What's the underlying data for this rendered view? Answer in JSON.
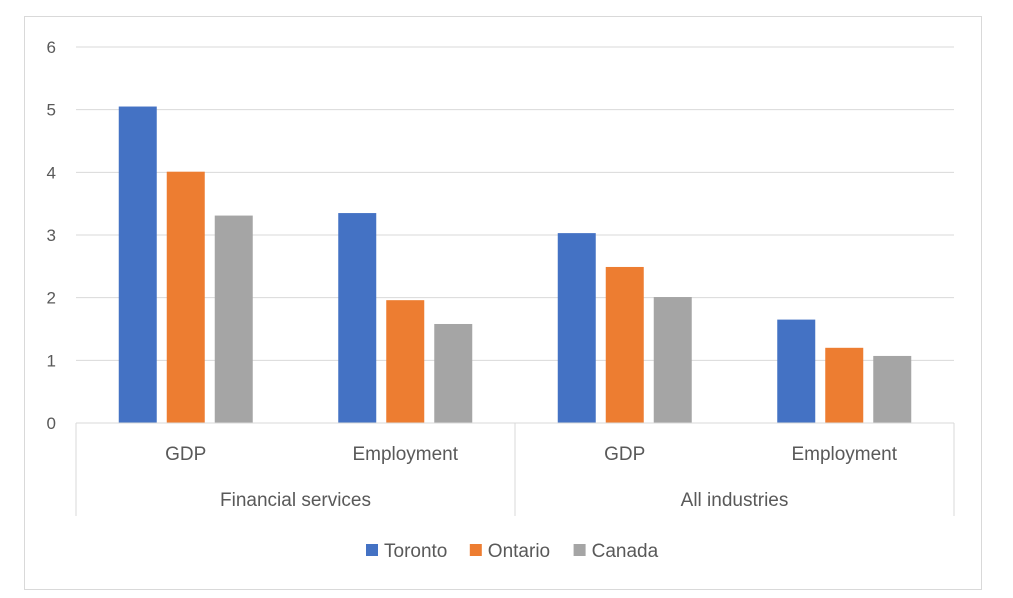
{
  "chart_data": {
    "type": "bar",
    "title": "",
    "xlabel": "",
    "ylabel": "",
    "ylim": [
      0,
      6
    ],
    "yticks": [
      "0",
      "1",
      "2",
      "3",
      "4",
      "5",
      "6"
    ],
    "grid": true,
    "legend_position": "bottom",
    "groups": [
      {
        "label": "Financial services",
        "categories": [
          "GDP",
          "Employment"
        ]
      },
      {
        "label": "All industries",
        "categories": [
          "GDP",
          "Employment"
        ]
      }
    ],
    "categories": [
      "GDP",
      "Employment",
      "GDP",
      "Employment"
    ],
    "series": [
      {
        "name": "Toronto",
        "color": "#4472c4",
        "values": [
          5.05,
          3.35,
          3.03,
          1.65
        ]
      },
      {
        "name": "Ontario",
        "color": "#ed7d31",
        "values": [
          4.01,
          1.96,
          2.49,
          1.2
        ]
      },
      {
        "name": "Canada",
        "color": "#a5a5a5",
        "values": [
          3.31,
          1.58,
          2.01,
          1.07
        ]
      }
    ]
  }
}
